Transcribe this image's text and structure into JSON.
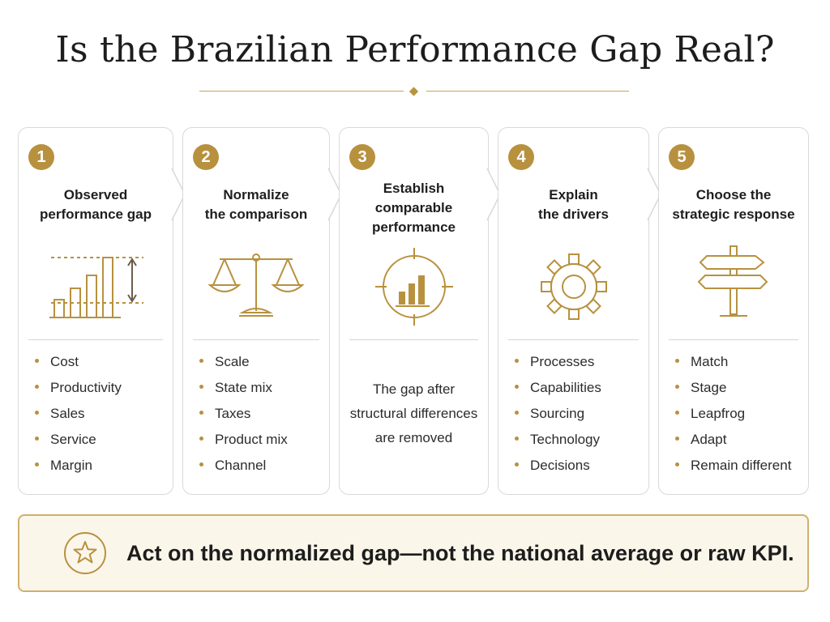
{
  "title": "Is the Brazilian Performance Gap Real?",
  "colors": {
    "gold": "#b8913f",
    "banner_bg": "#fbf6ea",
    "text": "#1e1e1e"
  },
  "steps": [
    {
      "number": "1",
      "title_lines": [
        "Observed",
        "performance gap"
      ],
      "icon": "bar-chart-gap-icon",
      "bullets": [
        "Cost",
        "Productivity",
        "Sales",
        "Service",
        "Margin"
      ]
    },
    {
      "number": "2",
      "title_lines": [
        "Normalize",
        "the comparison"
      ],
      "icon": "balance-scale-icon",
      "bullets": [
        "Scale",
        "State mix",
        "Taxes",
        "Product mix",
        "Channel"
      ]
    },
    {
      "number": "3",
      "title_lines": [
        "Establish",
        "comparable",
        "performance"
      ],
      "icon": "target-bar-chart-icon",
      "paragraph_lines": [
        "The gap after",
        "structural differences",
        "are removed"
      ]
    },
    {
      "number": "4",
      "title_lines": [
        "Explain",
        "the drivers"
      ],
      "icon": "gear-icon",
      "bullets": [
        "Processes",
        "Capabilities",
        "Sourcing",
        "Technology",
        "Decisions"
      ]
    },
    {
      "number": "5",
      "title_lines": [
        "Choose the",
        "strategic response"
      ],
      "icon": "signpost-icon",
      "bullets": [
        "Match",
        "Stage",
        "Leapfrog",
        "Adapt",
        "Remain different"
      ]
    }
  ],
  "banner": {
    "icon": "star-icon",
    "text": "Act on the normalized gap—not the national average or raw KPI."
  }
}
